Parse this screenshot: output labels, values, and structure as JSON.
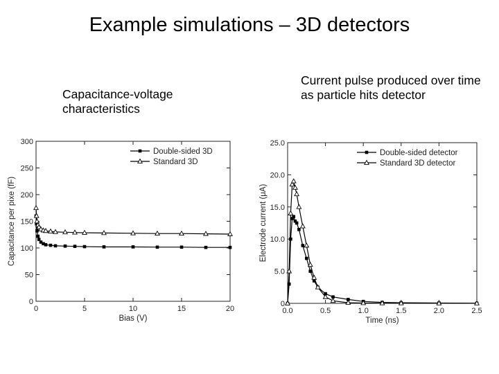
{
  "slide": {
    "title": "Example simulations – 3D detectors",
    "left_caption": "Capacitance-voltage characteristics",
    "right_caption": "Current pulse produced over time as particle hits detector"
  },
  "chart_data": [
    {
      "type": "line",
      "title": "",
      "xlabel": "Bias (V)",
      "ylabel": "Capacitance per pixe (fF)",
      "xlim": [
        0,
        20
      ],
      "ylim": [
        0,
        300
      ],
      "xticks": [
        "0",
        "5",
        "10",
        "15",
        "20"
      ],
      "yticks": [
        "0",
        "50",
        "100",
        "150",
        "200",
        "250",
        "300"
      ],
      "legend_position": "top-right",
      "grid": false,
      "series": [
        {
          "name": "Double-sided 3D",
          "marker": "filled-square",
          "x": [
            0,
            0.05,
            0.1,
            0.2,
            0.3,
            0.5,
            0.75,
            1,
            1.5,
            2,
            3,
            4,
            5,
            7,
            10,
            12.5,
            15,
            17.5,
            20
          ],
          "y": [
            160,
            145,
            132,
            122,
            116,
            111,
            108,
            106,
            105,
            104,
            103.5,
            103,
            102.5,
            102,
            102,
            101.5,
            101.5,
            101,
            101
          ]
        },
        {
          "name": "Standard 3D",
          "marker": "open-triangle",
          "x": [
            0,
            0.05,
            0.1,
            0.2,
            0.3,
            0.5,
            0.75,
            1,
            1.5,
            2,
            3,
            4,
            5,
            7,
            10,
            12.5,
            15,
            17.5,
            20
          ],
          "y": [
            175,
            160,
            150,
            143,
            139,
            135,
            133,
            132,
            131,
            130,
            129.5,
            129,
            128.5,
            128,
            127.5,
            127,
            127,
            126.5,
            126
          ]
        }
      ]
    },
    {
      "type": "line",
      "title": "",
      "xlabel": "Time (ns)",
      "ylabel": "Electrode current (μA)",
      "xlim": [
        0,
        2.5
      ],
      "ylim": [
        0,
        25
      ],
      "xticks": [
        "0.0",
        "0.5",
        "1.0",
        "1.5",
        "2.0",
        "2.5"
      ],
      "yticks": [
        "0",
        "5.0",
        "10.0",
        "15.0",
        "20.0",
        "25.0"
      ],
      "legend_position": "top-right",
      "grid": false,
      "series": [
        {
          "name": "Double-sided detector",
          "marker": "filled-square",
          "x": [
            0,
            0.02,
            0.04,
            0.06,
            0.08,
            0.1,
            0.12,
            0.15,
            0.2,
            0.25,
            0.3,
            0.35,
            0.4,
            0.5,
            0.6,
            0.8,
            1.0,
            1.25,
            1.5,
            2.0,
            2.5
          ],
          "y": [
            0,
            3,
            10,
            13.2,
            13.5,
            12.8,
            12.5,
            11.5,
            9,
            7,
            5,
            3.5,
            2.5,
            1.5,
            1.0,
            0.6,
            0.3,
            0.15,
            0.1,
            0.05,
            0.02
          ]
        },
        {
          "name": "Standard 3D detector",
          "marker": "open-triangle",
          "x": [
            0,
            0.02,
            0.04,
            0.06,
            0.08,
            0.1,
            0.12,
            0.15,
            0.2,
            0.25,
            0.3,
            0.35,
            0.4,
            0.5,
            0.6,
            0.8,
            1.0,
            1.25,
            1.5,
            2.0,
            2.5
          ],
          "y": [
            0,
            5,
            14,
            18.5,
            19,
            18,
            17,
            15,
            12,
            9,
            6,
            4,
            2.5,
            1.0,
            0.4,
            0.1,
            0.05,
            0.02,
            0.02,
            0.01,
            0.01
          ]
        }
      ]
    }
  ]
}
